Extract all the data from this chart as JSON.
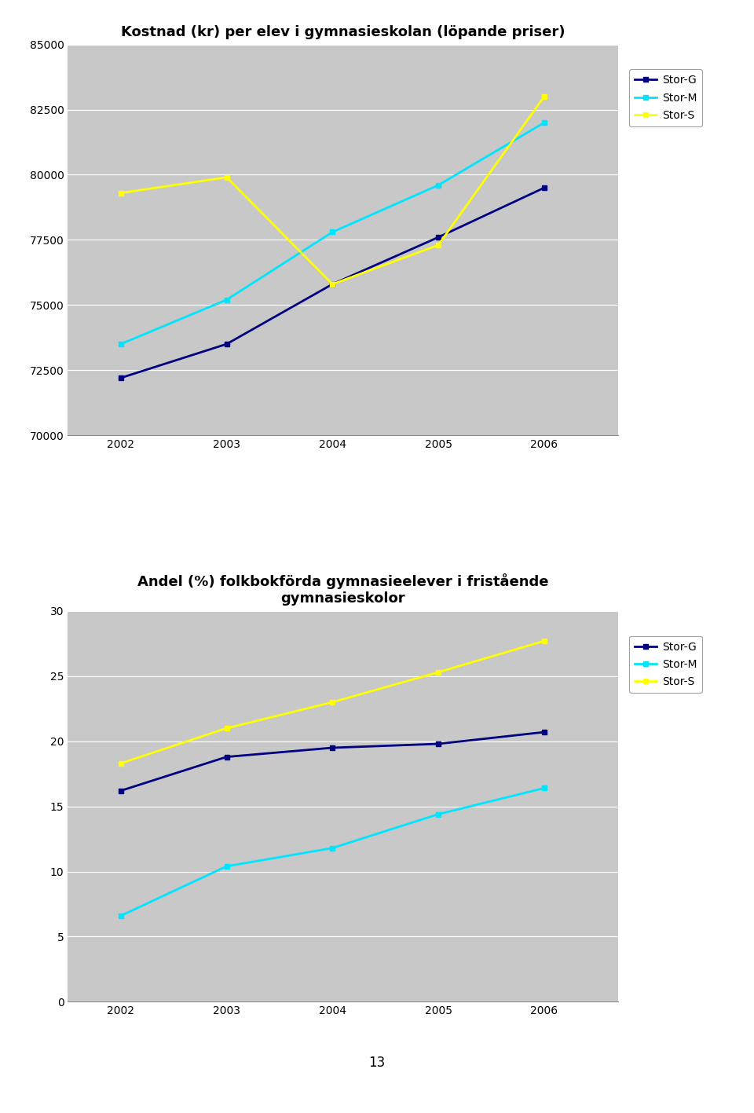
{
  "years": [
    2002,
    2003,
    2004,
    2005,
    2006
  ],
  "chart1": {
    "title": "Kostnad (kr) per elev i gymnasieskolan (löpande priser)",
    "stor_g": [
      72200,
      73500,
      75800,
      77600,
      79500
    ],
    "stor_m": [
      73500,
      75200,
      77800,
      79600,
      82000
    ],
    "stor_s": [
      79300,
      79900,
      75800,
      77300,
      83000
    ],
    "ylim": [
      70000,
      85000
    ],
    "yticks": [
      70000,
      72500,
      75000,
      77500,
      80000,
      82500,
      85000
    ],
    "ytick_labels": [
      "70000",
      "72500",
      "75000",
      "77500",
      "80000",
      "82500",
      "85000"
    ]
  },
  "chart2": {
    "title": "Andel (%) folkbokförda gymnasieelever i fristående\ngymnasieskolor",
    "stor_g": [
      16.2,
      18.8,
      19.5,
      19.8,
      20.7
    ],
    "stor_m": [
      6.6,
      10.4,
      11.8,
      14.4,
      16.4
    ],
    "stor_s": [
      18.3,
      21.0,
      23.0,
      25.3,
      27.7
    ],
    "ylim": [
      0,
      30
    ],
    "yticks": [
      0,
      5,
      10,
      15,
      20,
      25,
      30
    ],
    "ytick_labels": [
      "0",
      "5",
      "10",
      "15",
      "20",
      "25",
      "30"
    ]
  },
  "color_g": "#000080",
  "color_m": "#00E5FF",
  "color_s": "#FFFF00",
  "legend_labels": [
    "Stor-G",
    "Stor-M",
    "Stor-S"
  ],
  "plot_bg": "#C8C8C8",
  "linewidth": 2.0,
  "marker": "s",
  "markersize": 5,
  "page_number": "13",
  "title_fontsize": 13,
  "tick_fontsize": 10,
  "legend_fontsize": 10
}
